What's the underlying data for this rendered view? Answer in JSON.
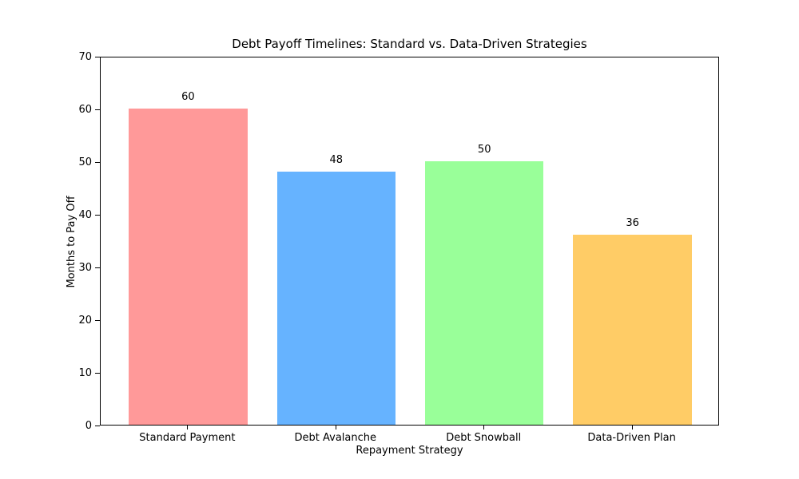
{
  "chart_data": {
    "type": "bar",
    "title": "Debt Payoff Timelines: Standard vs. Data-Driven Strategies",
    "xlabel": "Repayment Strategy",
    "ylabel": "Months to Pay Off",
    "categories": [
      "Standard Payment",
      "Debt Avalanche",
      "Debt Snowball",
      "Data-Driven Plan"
    ],
    "values": [
      60,
      48,
      50,
      36
    ],
    "value_labels": [
      "60",
      "48",
      "50",
      "36"
    ],
    "bar_colors": [
      "#ff9999",
      "#66b3ff",
      "#99ff99",
      "#ffcc66"
    ],
    "ylim": [
      0,
      70
    ],
    "yticks": [
      0,
      10,
      20,
      30,
      40,
      50,
      60,
      70
    ],
    "grid": false,
    "legend": "none",
    "background_color": "#ffffff",
    "axes_frame_color": "#000000"
  }
}
